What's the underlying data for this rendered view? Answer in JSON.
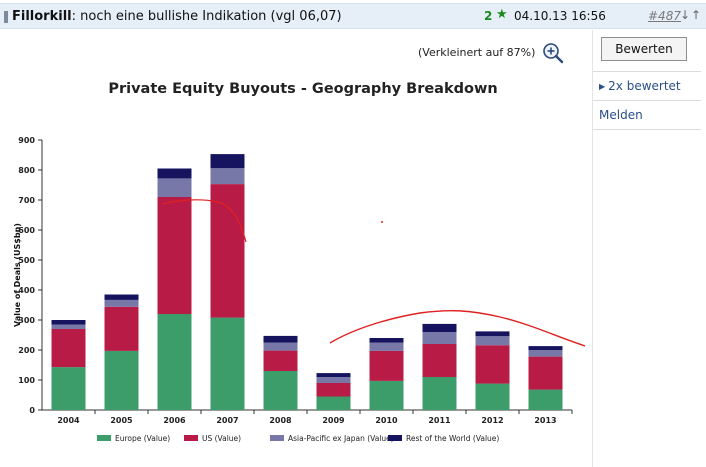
{
  "post": {
    "author": "Fillorkill",
    "separator": ":",
    "title": "noch eine bullishe Indikation (vgl 06,07)",
    "rating_count": "2",
    "rating_star": "★",
    "date": "04.10.13 16:56",
    "post_number": "#487",
    "sort_arrows": "↓↑",
    "zoom_note": "(Verkleinert auf 87%)"
  },
  "sidebar": {
    "rate_button": "Bewerten",
    "rated_link": "2x bewertet",
    "report_link": "Melden"
  },
  "colors": {
    "europe": "#3c9d6b",
    "us": "#b81c46",
    "apac": "#7777a8",
    "row": "#16145e",
    "annotation": "#e02020"
  },
  "chart_data": {
    "type": "bar",
    "stacked": true,
    "title": "Private Equity Buyouts - Geography Breakdown",
    "xlabel": "",
    "ylabel": "Value of Deals (US$bn)",
    "ylim": [
      0,
      900
    ],
    "yticks": [
      "0",
      "100",
      "200",
      "300",
      "400",
      "500",
      "600",
      "700",
      "800",
      "900"
    ],
    "categories": [
      "2004",
      "2005",
      "2006",
      "2007",
      "2008",
      "2009",
      "2010",
      "2011",
      "2012",
      "2013"
    ],
    "series": [
      {
        "name": "Europe (Value)",
        "color": "#3c9d6b",
        "values": [
          143,
          197,
          320,
          308,
          130,
          45,
          97,
          110,
          88,
          68
        ]
      },
      {
        "name": "US (Value)",
        "color": "#b81c46",
        "values": [
          127,
          147,
          390,
          445,
          68,
          45,
          100,
          110,
          128,
          110
        ]
      },
      {
        "name": "Asia-Pacific ex Japan (Value)",
        "color": "#7777a8",
        "values": [
          15,
          23,
          62,
          53,
          27,
          20,
          28,
          40,
          30,
          22
        ]
      },
      {
        "name": "Rest of the World (Value)",
        "color": "#16145e",
        "values": [
          15,
          18,
          33,
          47,
          22,
          13,
          15,
          27,
          16,
          13
        ]
      }
    ],
    "legend_position": "bottom"
  }
}
